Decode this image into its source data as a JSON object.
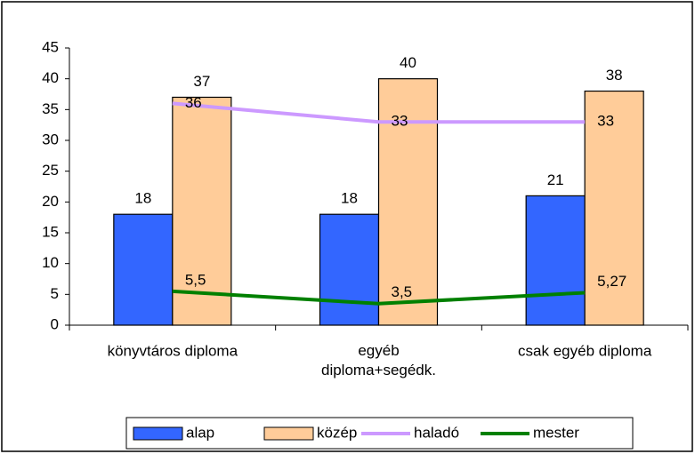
{
  "chart_data": {
    "type": "bar",
    "categories": [
      "könyvtáros diploma",
      "egyéb diploma+segédk.",
      "csak egyéb diploma"
    ],
    "series": [
      {
        "name": "alap",
        "type": "bar",
        "color": "#3366ff",
        "values": [
          18,
          18,
          21
        ]
      },
      {
        "name": "közép",
        "type": "bar",
        "color": "#ffcc99",
        "values": [
          37,
          40,
          38
        ]
      },
      {
        "name": "haladó",
        "type": "line",
        "color": "#cc99ff",
        "values": [
          36,
          33,
          33
        ]
      },
      {
        "name": "mester",
        "type": "line",
        "color": "#008000",
        "values": [
          5.5,
          3.5,
          5.27
        ],
        "value_labels": [
          "5,5",
          "3,5",
          "5,27"
        ]
      }
    ],
    "ylim": [
      0,
      45
    ],
    "yticks": [
      0,
      5,
      10,
      15,
      20,
      25,
      30,
      35,
      40,
      45
    ],
    "grid": false,
    "legend": "bottom"
  }
}
